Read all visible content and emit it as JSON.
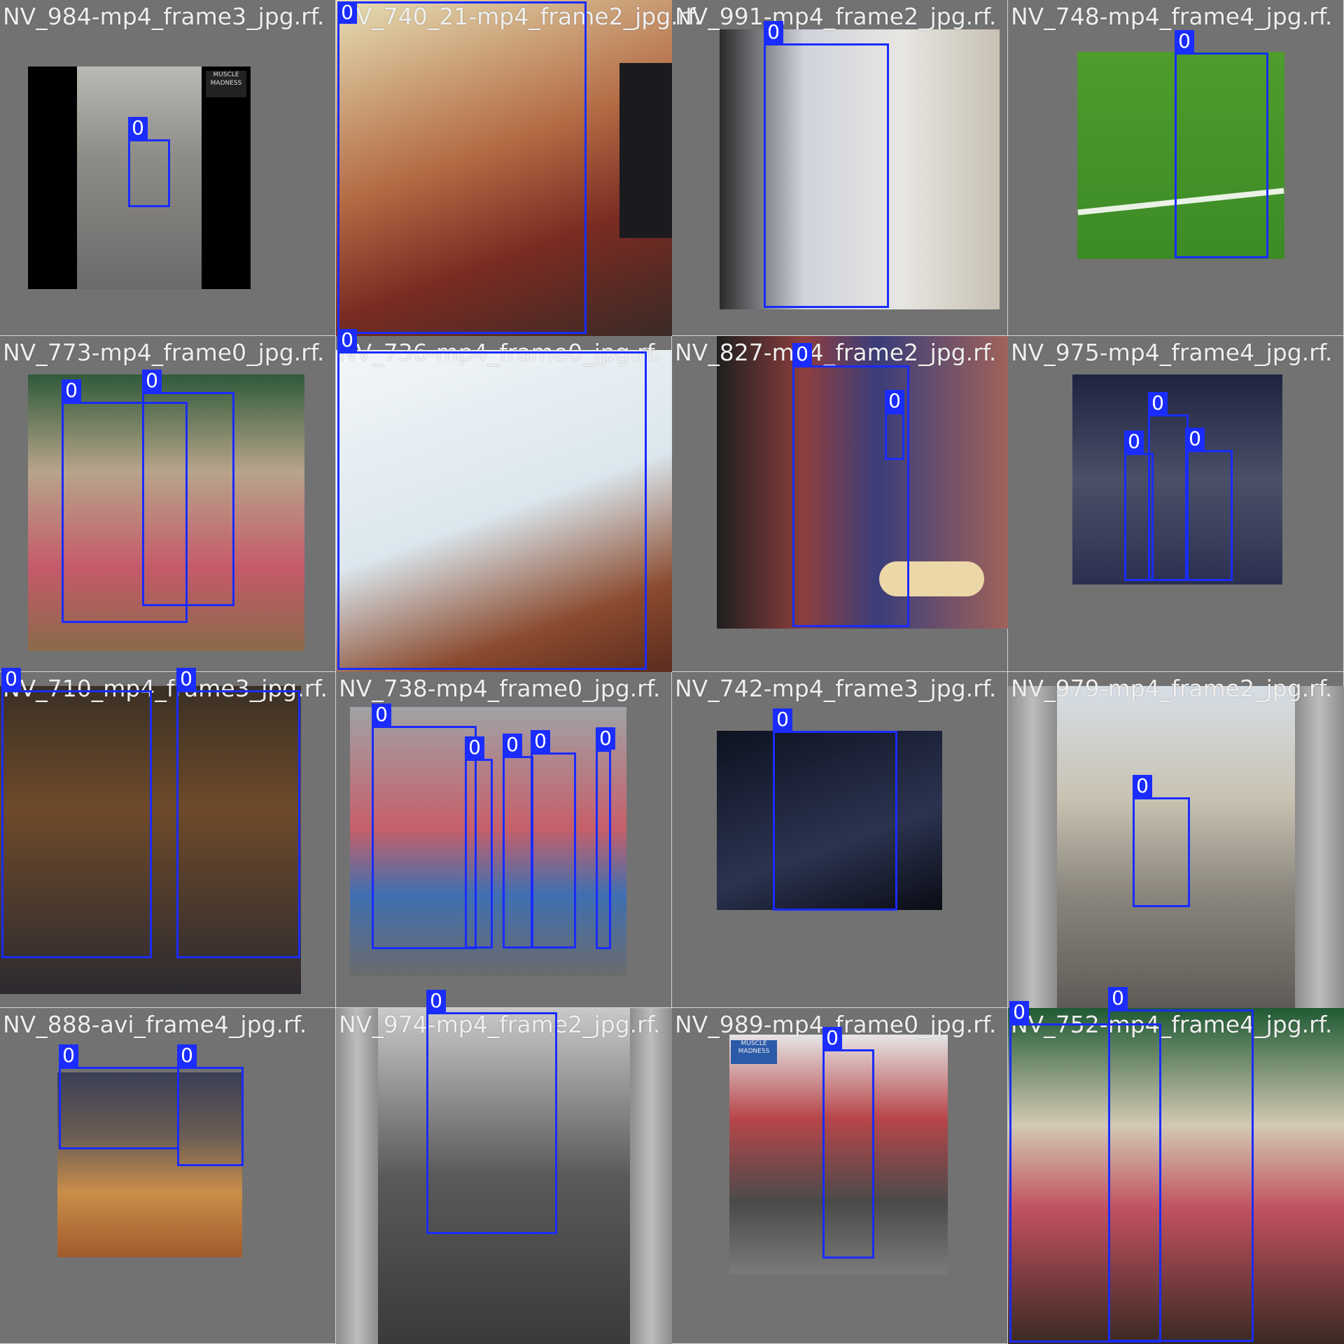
{
  "colors": {
    "bbox": "#1a2cff",
    "tile_background": "#727272",
    "label_text": "#eeeeee"
  },
  "tiles": [
    {
      "label": "NV_984-mp4_frame3_jpg.rf.",
      "boxes": [
        "0"
      ]
    },
    {
      "label": "NV_740_21-mp4_frame2_jpg.rf.",
      "boxes": [
        "0"
      ]
    },
    {
      "label": "NV_991-mp4_frame2_jpg.rf.",
      "boxes": [
        "0"
      ]
    },
    {
      "label": "NV_748-mp4_frame4_jpg.rf.",
      "boxes": [
        "0"
      ]
    },
    {
      "label": "NV_773-mp4_frame0_jpg.rf.",
      "boxes": [
        "0",
        "0"
      ]
    },
    {
      "label": "NV_736-mp4_frame0_jpg.rf.",
      "boxes": [
        "0"
      ]
    },
    {
      "label": "NV_827-mp4_frame2_jpg.rf.",
      "boxes": [
        "0",
        "0"
      ]
    },
    {
      "label": "NV_975-mp4_frame4_jpg.rf.",
      "boxes": [
        "0",
        "0",
        "0"
      ]
    },
    {
      "label": "NV_710_mp4_frame3_jpg.rf.",
      "boxes": [
        "0",
        "0"
      ]
    },
    {
      "label": "NV_738-mp4_frame0_jpg.rf.",
      "boxes": [
        "0",
        "0",
        "0",
        "0",
        "0"
      ]
    },
    {
      "label": "NV_742-mp4_frame3_jpg.rf.",
      "boxes": [
        "0"
      ]
    },
    {
      "label": "NV_979-mp4_frame2_jpg.rf.",
      "boxes": [
        "0"
      ]
    },
    {
      "label": "NV_888-avi_frame4_jpg.rf.",
      "boxes": [
        "0",
        "0"
      ]
    },
    {
      "label": "NV_974-mp4_frame2_jpg.rf.",
      "boxes": [
        "0"
      ]
    },
    {
      "label": "NV_989-mp4_frame0_jpg.rf.",
      "boxes": [
        "0"
      ]
    },
    {
      "label": "NV_752-mp4_frame4_jpg.rf.",
      "boxes": [
        "0",
        "0"
      ]
    }
  ]
}
